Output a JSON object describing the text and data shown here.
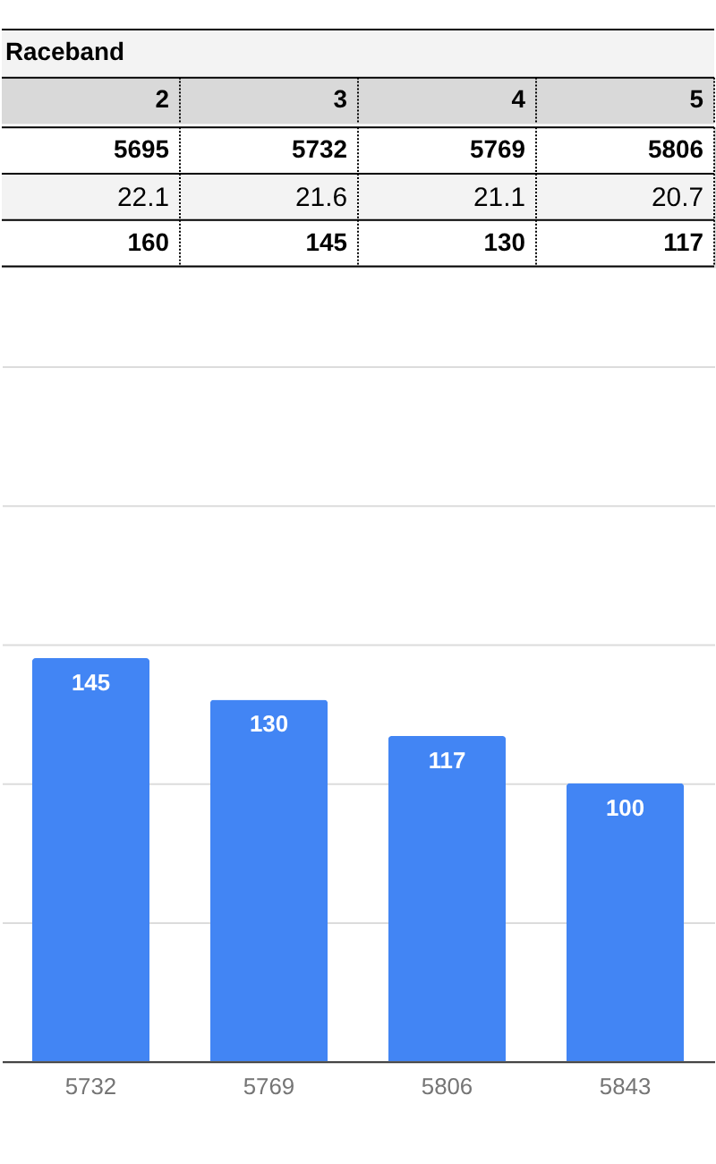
{
  "chart_data": [
    {
      "type": "heatmap",
      "title": "Raceband",
      "categories": [
        "2",
        "3",
        "4",
        "5"
      ],
      "y_categories": [
        null,
        null,
        null
      ],
      "cells": [
        [
          5695,
          5732,
          5769,
          5806
        ],
        [
          22.1,
          21.6,
          21.1,
          20.7
        ],
        [
          160,
          145,
          130,
          117
        ]
      ],
      "data_labels": true
    },
    {
      "type": "bar",
      "categories": [
        "5732",
        "5769",
        "5806",
        "5843"
      ],
      "values": [
        145,
        130,
        117,
        100
      ],
      "color": "#4285f4",
      "ylim": [
        0,
        250
      ],
      "yticks": [
        0,
        50,
        100,
        150,
        200,
        250
      ],
      "grid": "y",
      "tick_labels": "x",
      "data_labels": true
    }
  ]
}
